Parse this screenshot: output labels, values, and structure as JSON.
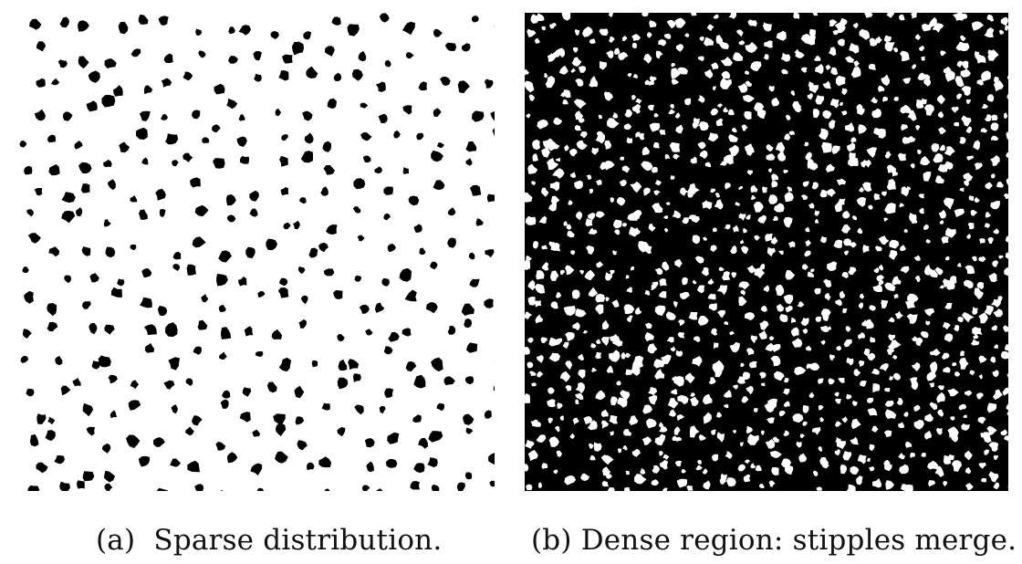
{
  "figure": {
    "subfigures": [
      {
        "label": "(a)",
        "caption": "Sparse distribution.",
        "image": "sparse-stipple-pattern",
        "colors": {
          "background": "#ffffff",
          "stipple": "#000000"
        }
      },
      {
        "label": "(b)",
        "caption": "Dense region: stipples merge.",
        "image": "dense-merged-stipple-pattern",
        "colors": {
          "background": "#000000",
          "gap": "#ffffff"
        }
      }
    ]
  }
}
